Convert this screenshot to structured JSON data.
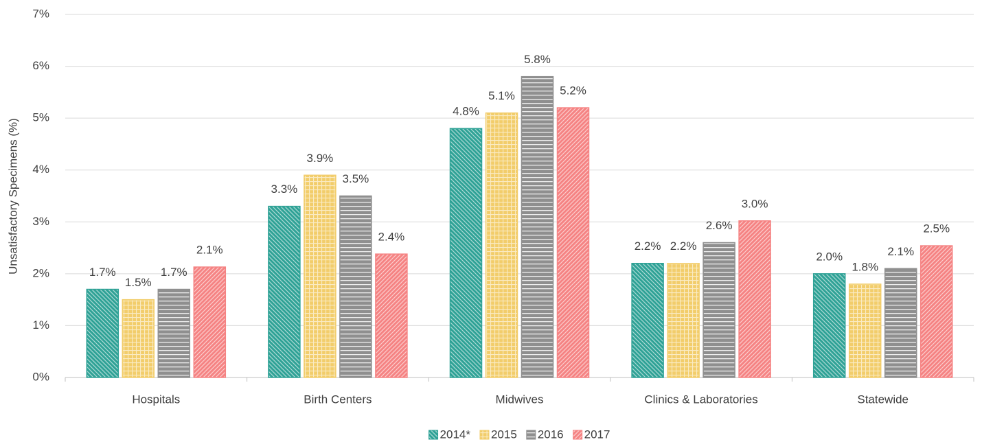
{
  "chart_data": {
    "type": "bar",
    "y_label": "Unsatisfactory Specimens (%)",
    "categories": [
      "Hospitals",
      "Birth Centers",
      "Midwives",
      "Clinics & Laboratories",
      "Statewide"
    ],
    "series": [
      {
        "name": "2014*",
        "color": "#2fa296",
        "pattern": "diagonal-down",
        "values": [
          1.7,
          3.3,
          4.8,
          2.2,
          2.0
        ],
        "value_labels": [
          "1.7%",
          "3.3%",
          "4.8%",
          "2.2%",
          "2.0%"
        ]
      },
      {
        "name": "2015",
        "color": "#f2cd6b",
        "pattern": "grid",
        "values": [
          1.5,
          3.9,
          5.1,
          2.2,
          1.8
        ],
        "value_labels": [
          "1.5%",
          "3.9%",
          "5.1%",
          "2.2%",
          "1.8%"
        ]
      },
      {
        "name": "2016",
        "color": "#8f8f8f",
        "pattern": "horizontal",
        "values": [
          1.7,
          3.5,
          5.8,
          2.6,
          2.1
        ],
        "value_labels": [
          "1.7%",
          "3.5%",
          "5.8%",
          "2.6%",
          "2.1%"
        ]
      },
      {
        "name": "2017",
        "color": "#f58383",
        "pattern": "diagonal-up",
        "values": [
          2.13,
          2.38,
          5.2,
          3.02,
          2.54
        ],
        "value_labels": [
          "2.1%",
          "2.4%",
          "5.2%",
          "3.0%",
          "2.5%"
        ]
      }
    ],
    "ylim": [
      0,
      7
    ],
    "yticks": [
      {
        "value": 0,
        "label": "0%"
      },
      {
        "value": 1,
        "label": "1%"
      },
      {
        "value": 2,
        "label": "2%"
      },
      {
        "value": 3,
        "label": "3%"
      },
      {
        "value": 4,
        "label": "4%"
      },
      {
        "value": 5,
        "label": "5%"
      },
      {
        "value": 6,
        "label": "6%"
      },
      {
        "value": 7,
        "label": "7%"
      }
    ],
    "grid": true,
    "legend": "bottom"
  }
}
